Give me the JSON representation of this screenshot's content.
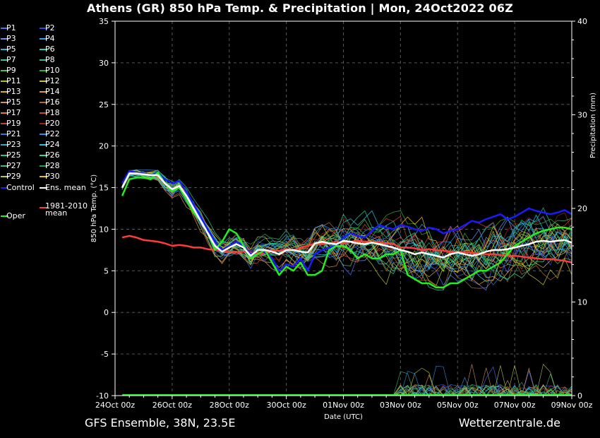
{
  "title": "Athens  (GR)  850 hPa Temp. & Precipitation | Mon, 24Oct2022 06Z",
  "footer": {
    "left": "GFS Ensemble, 38N, 23.5E",
    "right": "Wetterzentrale.de"
  },
  "legend": [
    {
      "label": "P1",
      "color": "#4d6bff"
    },
    {
      "label": "P2",
      "color": "#2b4dd6"
    },
    {
      "label": "P3",
      "color": "#6f8cff"
    },
    {
      "label": "P4",
      "color": "#3fa0e0"
    },
    {
      "label": "P5",
      "color": "#2fb7d0"
    },
    {
      "label": "P6",
      "color": "#2ad0b0"
    },
    {
      "label": "P7",
      "color": "#30c89a"
    },
    {
      "label": "P8",
      "color": "#37b884"
    },
    {
      "label": "P9",
      "color": "#45c83e"
    },
    {
      "label": "P10",
      "color": "#2fb02f"
    },
    {
      "label": "P11",
      "color": "#b0c020"
    },
    {
      "label": "P12",
      "color": "#d8b840"
    },
    {
      "label": "P13",
      "color": "#e0b000"
    },
    {
      "label": "P14",
      "color": "#e09a30"
    },
    {
      "label": "P15",
      "color": "#d89060"
    },
    {
      "label": "P16",
      "color": "#b06a30"
    },
    {
      "label": "P17",
      "color": "#e07a40"
    },
    {
      "label": "P18",
      "color": "#c05030"
    },
    {
      "label": "P19",
      "color": "#d03a3a"
    },
    {
      "label": "P20",
      "color": "#a02020"
    },
    {
      "label": "P21",
      "color": "#3a70e0"
    },
    {
      "label": "P22",
      "color": "#2a90e8"
    },
    {
      "label": "P23",
      "color": "#30a8d8"
    },
    {
      "label": "P24",
      "color": "#2ac0e0"
    },
    {
      "label": "P25",
      "color": "#20c890"
    },
    {
      "label": "P26",
      "color": "#30d8a0"
    },
    {
      "label": "P27",
      "color": "#40c070"
    },
    {
      "label": "P28",
      "color": "#28a048"
    },
    {
      "label": "P29",
      "color": "#a8d040"
    },
    {
      "label": "P30",
      "color": "#e8c020"
    },
    {
      "label": "Control",
      "color": "#1a1aff"
    },
    {
      "label": "Ens. mean",
      "color": "#ffffff"
    },
    {
      "label": "Oper",
      "color": "#22ee22"
    },
    {
      "label": "1981-2010 mean",
      "color": "#ff3a3a"
    }
  ],
  "chart_data": {
    "type": "line",
    "ylabel": "850 hPa Temp. (°C)",
    "y2label": "Precipitation (mm)",
    "xlabel": "Date (UTC)",
    "ylim": [
      -10,
      35
    ],
    "y2lim": [
      0,
      40
    ],
    "yticks": [
      -10,
      -5,
      0,
      5,
      10,
      15,
      20,
      25,
      30,
      35
    ],
    "y2ticks": [
      0,
      10,
      20,
      30,
      40
    ],
    "xlim": [
      0,
      16
    ],
    "xticks": [
      {
        "value": 0,
        "label": "24Oct 00z"
      },
      {
        "value": 2,
        "label": "26Oct 00z"
      },
      {
        "value": 4,
        "label": "28Oct 00z"
      },
      {
        "value": 6,
        "label": "30Oct 00z"
      },
      {
        "value": 8,
        "label": "01Nov 00z"
      },
      {
        "value": 10,
        "label": "03Nov 00z"
      },
      {
        "value": 12,
        "label": "05Nov 00z"
      },
      {
        "value": 14,
        "label": "07Nov 00z"
      },
      {
        "value": 16,
        "label": "09Nov 00z"
      }
    ],
    "grid": true,
    "x": [
      0.25,
      0.5,
      0.75,
      1,
      1.25,
      1.5,
      1.75,
      2,
      2.25,
      2.5,
      2.75,
      3,
      3.25,
      3.5,
      3.75,
      4,
      4.25,
      4.5,
      4.75,
      5,
      5.25,
      5.5,
      5.75,
      6,
      6.25,
      6.5,
      6.75,
      7,
      7.25,
      7.5,
      7.75,
      8,
      8.25,
      8.5,
      8.75,
      9,
      9.25,
      9.5,
      9.75,
      10,
      10.25,
      10.5,
      10.75,
      11,
      11.25,
      11.5,
      11.75,
      12,
      12.25,
      12.5,
      12.75,
      13,
      13.25,
      13.5,
      13.75,
      14,
      14.25,
      14.5,
      14.75,
      15,
      15.25,
      15.5,
      15.75,
      16
    ],
    "series": [
      {
        "name": "Control",
        "values": [
          15.5,
          17,
          16.8,
          16.7,
          16.5,
          16.8,
          16.0,
          15.5,
          15.8,
          14.5,
          13.0,
          11.5,
          10.0,
          8.5,
          7.5,
          8.0,
          8.5,
          8.0,
          7.0,
          7.5,
          7.2,
          6.5,
          5.0,
          5.8,
          5.5,
          6.5,
          5.0,
          7.0,
          7.5,
          7.8,
          8.0,
          9.0,
          9.5,
          9.2,
          9.0,
          9.8,
          10.5,
          10.2,
          10.0,
          10.5,
          10.3,
          10.0,
          9.8,
          10.2,
          10.0,
          9.5,
          9.8,
          10.0,
          10.5,
          11.0,
          10.8,
          11.2,
          11.5,
          11.8,
          11.2,
          11.5,
          12.0,
          12.5,
          12.2,
          12.0,
          11.8,
          12.0,
          12.3,
          11.8
        ]
      },
      {
        "name": "Ens. mean",
        "values": [
          15.0,
          16.7,
          16.7,
          16.6,
          16.5,
          16.5,
          15.5,
          14.8,
          15.2,
          14.0,
          12.5,
          11.0,
          9.5,
          8.0,
          7.3,
          7.8,
          8.2,
          7.8,
          6.8,
          7.5,
          7.5,
          7.3,
          7.0,
          7.5,
          7.5,
          7.3,
          7.2,
          8.3,
          8.5,
          8.3,
          8.2,
          8.6,
          8.5,
          8.3,
          8.2,
          8.4,
          8.2,
          8.0,
          7.8,
          7.5,
          7.3,
          7.0,
          7.2,
          7.0,
          6.8,
          6.6,
          7.0,
          7.2,
          7.0,
          6.8,
          7.0,
          7.3,
          7.5,
          7.5,
          7.6,
          7.8,
          8.0,
          8.2,
          8.5,
          8.6,
          8.5,
          8.6,
          8.7,
          8.4
        ]
      },
      {
        "name": "Oper",
        "values": [
          14.0,
          16.0,
          16.2,
          16.2,
          16.0,
          16.8,
          15.5,
          14.5,
          15.0,
          13.5,
          12.0,
          11.0,
          9.5,
          7.5,
          8.5,
          10.0,
          9.5,
          8.0,
          6.5,
          7.0,
          7.5,
          6.0,
          4.5,
          5.5,
          5.0,
          6.0,
          4.5,
          4.5,
          5.0,
          7.5,
          8.0,
          8.0,
          7.5,
          6.5,
          7.0,
          6.5,
          6.5,
          7.0,
          7.0,
          7.5,
          4.5,
          4.0,
          3.5,
          3.5,
          3.0,
          3.0,
          3.5,
          3.5,
          4.0,
          4.5,
          5.0,
          5.0,
          5.5,
          6.0,
          7.0,
          8.0,
          8.5,
          9.0,
          9.5,
          9.8,
          10.0,
          10.2,
          10.2,
          10.0
        ]
      },
      {
        "name": "1981-2010 mean",
        "values": [
          9.0,
          9.2,
          9.0,
          8.7,
          8.6,
          8.5,
          8.3,
          8.0,
          8.1,
          8.0,
          7.8,
          7.8,
          7.6,
          7.5,
          7.4,
          7.3,
          7.2,
          7.3,
          7.2,
          7.0,
          7.1,
          7.5,
          7.4,
          7.6,
          7.5,
          7.8,
          8.0,
          8.3,
          8.2,
          8.3,
          8.5,
          8.3,
          8.5,
          8.6,
          8.5,
          8.4,
          8.5,
          8.3,
          8.2,
          7.8,
          7.8,
          7.7,
          7.5,
          7.6,
          7.5,
          7.4,
          7.3,
          7.3,
          7.2,
          7.2,
          7.1,
          7.0,
          7.0,
          6.9,
          6.8,
          6.8,
          6.7,
          6.6,
          6.5,
          6.4,
          6.4,
          6.3,
          6.2,
          6.0
        ]
      }
    ]
  }
}
